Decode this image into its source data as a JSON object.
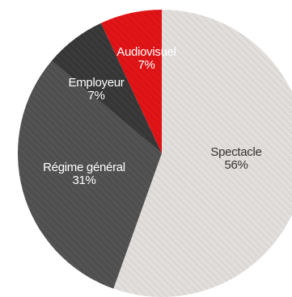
{
  "chart_data": {
    "type": "pie",
    "title": "",
    "start": "top",
    "direction": "clockwise",
    "slices": [
      {
        "label": "Spectacle",
        "percent_label": "56%",
        "value": 56,
        "color": "#e2dedb",
        "hatch": "#cfcac6",
        "text_color": "#333333"
      },
      {
        "label": "Régime général",
        "percent_label": "31%",
        "value": 31,
        "color": "#4f4f4f",
        "hatch": "#5d5d5d",
        "text_color": "#ffffff"
      },
      {
        "label": "Employeur",
        "percent_label": "7%",
        "value": 7,
        "color": "#363636",
        "hatch": "#454545",
        "text_color": "#ffffff"
      },
      {
        "label": "Audiovisuel",
        "percent_label": "7%",
        "value": 7,
        "color": "#e11417",
        "hatch": "#c90f12",
        "text_color": "#ffffff"
      }
    ]
  }
}
